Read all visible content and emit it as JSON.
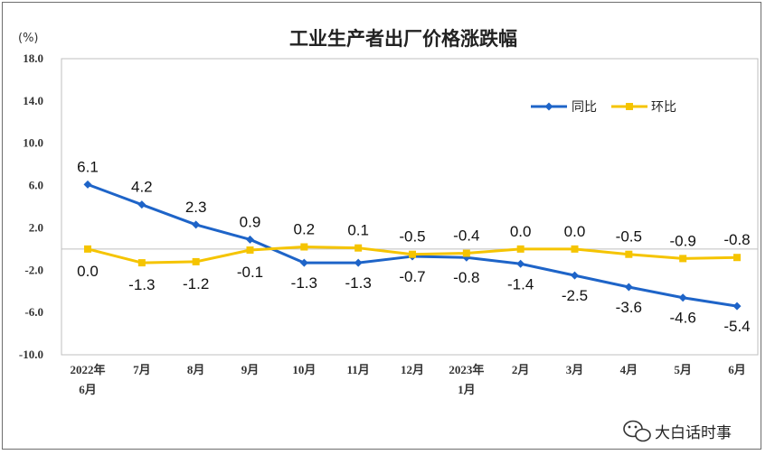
{
  "chart_data": {
    "type": "line",
    "title": "工业生产者出厂价格涨跌幅",
    "ylabel": "(%)",
    "ylim": [
      -10.0,
      18.0
    ],
    "yticks": [
      "18.0",
      "14.0",
      "10.0",
      "6.0",
      "2.0",
      "-2.0",
      "-6.0",
      "-10.0"
    ],
    "categories": [
      [
        "2022年",
        "6月"
      ],
      [
        "7月"
      ],
      [
        "8月"
      ],
      [
        "9月"
      ],
      [
        "10月"
      ],
      [
        "11月"
      ],
      [
        "12月"
      ],
      [
        "2023年",
        "1月"
      ],
      [
        "2月"
      ],
      [
        "3月"
      ],
      [
        "4月"
      ],
      [
        "5月"
      ],
      [
        "6月"
      ]
    ],
    "series": [
      {
        "name": "同比",
        "color": "#1e64c8",
        "values": [
          6.1,
          4.2,
          2.3,
          0.9,
          -1.3,
          -1.3,
          -0.7,
          -0.8,
          -1.4,
          -2.5,
          -3.6,
          -4.6,
          -5.4
        ],
        "labels": [
          "6.1",
          "4.2",
          "2.3",
          "0.9",
          "-1.3",
          "-1.3",
          "-0.7",
          "-0.8",
          "-1.4",
          "-2.5",
          "-3.6",
          "-4.6",
          "-5.4"
        ]
      },
      {
        "name": "环比",
        "color": "#f5c400",
        "values": [
          0.0,
          -1.3,
          -1.2,
          -0.1,
          0.2,
          0.1,
          -0.5,
          -0.4,
          0.0,
          0.0,
          -0.5,
          -0.9,
          -0.8
        ],
        "labels": [
          "0.0",
          "-1.3",
          "-1.2",
          "-0.1",
          "0.2",
          "0.1",
          "-0.5",
          "-0.4",
          "0.0",
          "0.0",
          "-0.5",
          "-0.9",
          "-0.8"
        ]
      }
    ],
    "legend": "top-right",
    "grid": false
  },
  "watermark": {
    "icon": "wechat-icon",
    "text": "大白话时事"
  }
}
